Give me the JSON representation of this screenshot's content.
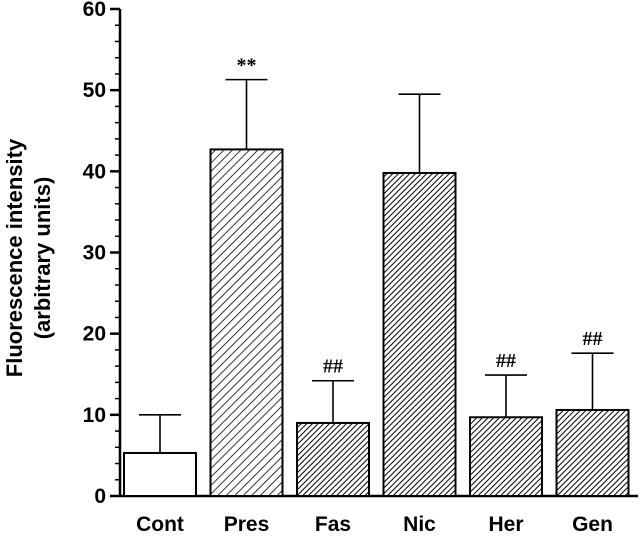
{
  "chart_data": {
    "type": "bar",
    "categories": [
      "Cont",
      "Pres",
      "Fas",
      "Nic",
      "Her",
      "Gen"
    ],
    "values": [
      5.3,
      42.7,
      9.0,
      39.8,
      9.7,
      10.6
    ],
    "errors": [
      4.7,
      8.6,
      5.2,
      9.7,
      5.2,
      7.0
    ],
    "annotations": [
      "",
      "**",
      "##",
      "",
      "##",
      "##"
    ],
    "fills": [
      "white",
      "hatch-light",
      "hatch-dense",
      "hatch-dense",
      "hatch-dense",
      "hatch-dense"
    ],
    "ylabel_line1": "Fluorescence intensity",
    "ylabel_line2": "(arbitrary units)",
    "ylim": [
      0,
      60
    ],
    "yticks": [
      0,
      10,
      20,
      30,
      40,
      50,
      60
    ],
    "grid": false,
    "legend": "none"
  }
}
